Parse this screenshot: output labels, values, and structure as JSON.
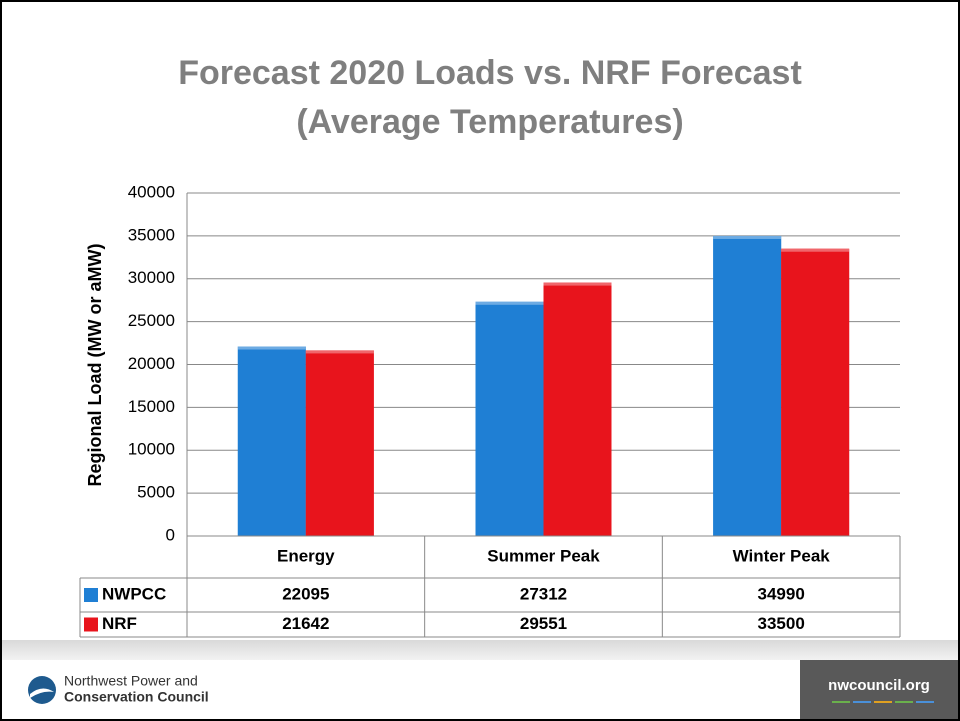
{
  "chart_data": {
    "type": "bar",
    "title": "Forecast 2020 Loads vs. NRF Forecast",
    "subtitle": "(Average Temperatures)",
    "y_label": "Regional Load (MW or aMW)",
    "categories": [
      "Energy",
      "Summer Peak",
      "Winter Peak"
    ],
    "series": [
      {
        "name": "NWPCC",
        "color": "#1f7fd4",
        "values": [
          22095,
          27312,
          34990
        ]
      },
      {
        "name": "NRF",
        "color": "#e8141c",
        "values": [
          21642,
          29551,
          33500
        ]
      }
    ],
    "ylim": [
      0,
      40000
    ],
    "yticks": [
      0,
      5000,
      10000,
      15000,
      20000,
      25000,
      30000,
      35000,
      40000
    ],
    "grid": true,
    "data_table": true
  },
  "footer": {
    "org": [
      "Northwest Power and",
      "Conservation Council"
    ],
    "url": "nwcouncil.org"
  }
}
